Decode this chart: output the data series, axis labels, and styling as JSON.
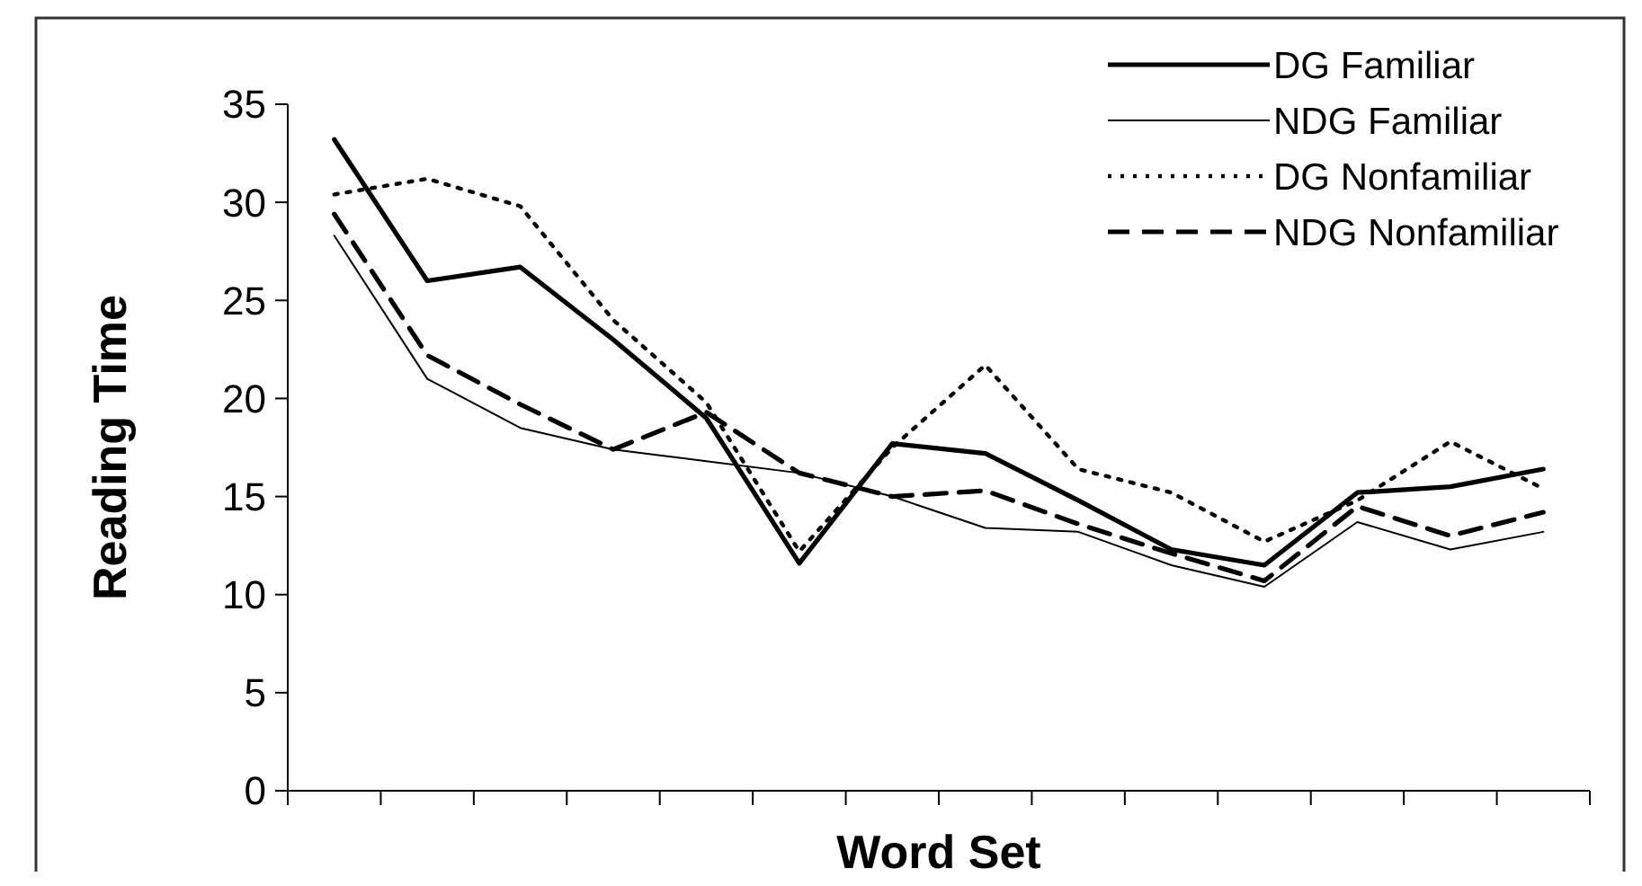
{
  "chart_data": {
    "type": "line",
    "xlabel": "Word Set",
    "ylabel": "Reading Time",
    "categories": [
      null,
      null,
      null,
      null,
      null,
      null,
      null,
      null,
      null,
      null,
      null,
      null,
      null,
      null
    ],
    "ylim": [
      0,
      35
    ],
    "yticks": [
      0,
      5,
      10,
      15,
      20,
      25,
      30,
      35
    ],
    "grid": false,
    "legend": "top right",
    "marker": "none",
    "series": [
      {
        "name": "DG Familiar",
        "color": "#000000",
        "line_style": "solid",
        "values": [
          33.2,
          26,
          26.7,
          23,
          19,
          11.6,
          17.7,
          17.2,
          14.8,
          12.3,
          11.5,
          15.2,
          15.5,
          16.4
        ]
      },
      {
        "name": "NDG Familiar",
        "color": "#000000",
        "line_style": "solid",
        "values": [
          28.3,
          21,
          18.5,
          17.4,
          16.8,
          16.2,
          15,
          13.4,
          13.2,
          11.5,
          10.4,
          13.7,
          12.3,
          13.2
        ]
      },
      {
        "name": "DG Nonfamiliar",
        "color": "#000000",
        "line_style": "dotted",
        "values": [
          30.4,
          31.2,
          29.8,
          24,
          19.8,
          12.2,
          17.5,
          21.7,
          16.4,
          15.2,
          12.7,
          14.8,
          17.8,
          15.4
        ]
      },
      {
        "name": "NDG Nonfamiliar",
        "color": "#000000",
        "line_style": "dashed",
        "values": [
          29.4,
          22.2,
          19.7,
          17.4,
          19.3,
          16.2,
          15,
          15.3,
          13.6,
          12.1,
          10.7,
          14.5,
          13,
          14.2
        ]
      }
    ]
  }
}
